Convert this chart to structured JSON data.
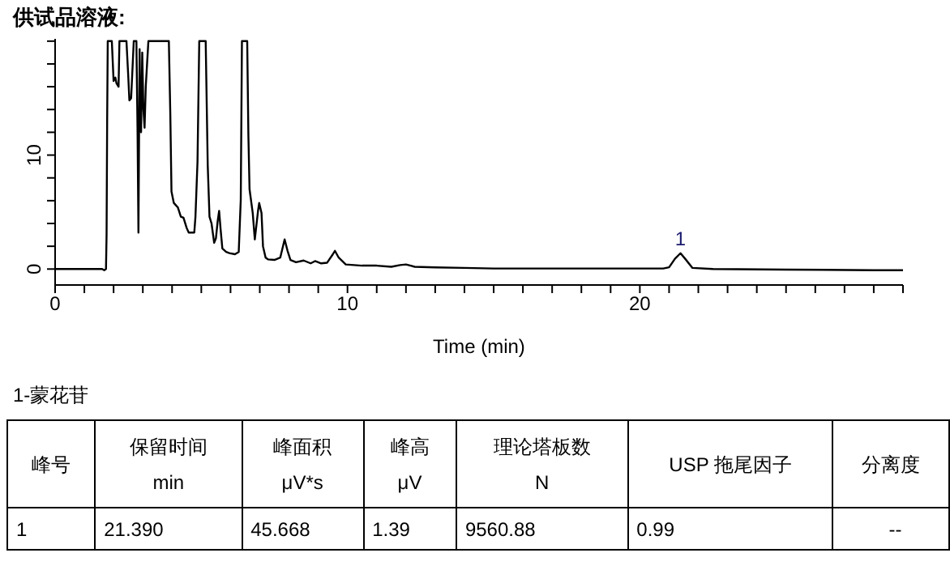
{
  "chart_data": {
    "type": "line",
    "title": "供试品溶液:",
    "xlabel": "Time (min)",
    "color": "#000000",
    "marker": "none",
    "x": [
      0,
      1.61,
      1.68,
      1.74,
      1.76,
      1.78,
      1.8,
      1.94,
      2.0,
      2.06,
      2.1,
      2.17,
      2.2,
      2.44,
      2.5,
      2.54,
      2.6,
      2.69,
      2.78,
      2.82,
      2.85,
      2.89,
      2.92,
      2.94,
      2.98,
      3.02,
      3.06,
      3.1,
      3.19,
      3.89,
      3.94,
      3.98,
      4.06,
      4.2,
      4.3,
      4.39,
      4.5,
      4.57,
      4.76,
      4.8,
      4.87,
      4.93,
      5.15,
      5.22,
      5.28,
      5.35,
      5.44,
      5.5,
      5.56,
      5.61,
      5.66,
      5.72,
      5.85,
      5.96,
      6.15,
      6.28,
      6.35,
      6.39,
      6.57,
      6.61,
      6.65,
      6.76,
      6.83,
      6.94,
      6.98,
      7.06,
      7.11,
      7.2,
      7.28,
      7.5,
      7.7,
      7.85,
      7.95,
      8.05,
      8.24,
      8.5,
      8.74,
      8.89,
      9.1,
      9.3,
      9.5,
      9.57,
      9.7,
      9.94,
      10.5,
      11,
      11.5,
      11.8,
      12,
      12.3,
      13,
      14,
      15,
      17,
      19,
      20.8,
      21.0,
      21.2,
      21.39,
      21.55,
      21.8,
      22.5,
      25,
      28,
      29
    ],
    "values": [
      0,
      0,
      -0.1,
      0,
      3,
      13,
      20,
      20,
      16.5,
      16.8,
      16.3,
      16,
      20,
      20,
      17,
      14.8,
      15,
      20,
      20,
      12,
      3.2,
      19.3,
      13,
      12,
      19,
      14,
      12.4,
      16,
      20,
      20,
      13.6,
      6.8,
      5.8,
      5.4,
      4.6,
      4.5,
      3.6,
      3.2,
      3.2,
      4.6,
      9.4,
      20,
      20,
      9.1,
      4.6,
      4,
      2.3,
      2.7,
      4.2,
      5.1,
      3.5,
      1.8,
      1.5,
      1.4,
      1.3,
      1.5,
      6.1,
      20,
      20,
      11.8,
      7,
      4.9,
      2.6,
      5.1,
      5.8,
      4.9,
      2,
      1,
      0.85,
      0.8,
      1,
      2.6,
      1.6,
      0.8,
      0.6,
      0.75,
      0.5,
      0.7,
      0.5,
      0.55,
      1.3,
      1.6,
      1,
      0.4,
      0.3,
      0.3,
      0.2,
      0.35,
      0.4,
      0.2,
      0.15,
      0.1,
      0.05,
      0.05,
      0.05,
      0.05,
      0.15,
      0.9,
      1.39,
      0.9,
      0.1,
      0,
      -0.05,
      -0.1,
      -0.1
    ],
    "xlim": [
      0,
      29
    ],
    "ylim": [
      -1.4,
      20.2
    ],
    "xticks": [
      0,
      {
        "value": 1,
        "label": null
      },
      {
        "value": 2,
        "label": null
      },
      {
        "value": 3,
        "label": null
      },
      {
        "value": 4,
        "label": null
      },
      {
        "value": 5,
        "label": null
      },
      {
        "value": 6,
        "label": null
      },
      {
        "value": 7,
        "label": null
      },
      {
        "value": 8,
        "label": null
      },
      {
        "value": 9,
        "label": null
      },
      10,
      {
        "value": 11,
        "label": null
      },
      {
        "value": 12,
        "label": null
      },
      {
        "value": 13,
        "label": null
      },
      {
        "value": 14,
        "label": null
      },
      {
        "value": 15,
        "label": null
      },
      {
        "value": 16,
        "label": null
      },
      {
        "value": 17,
        "label": null
      },
      {
        "value": 18,
        "label": null
      },
      {
        "value": 19,
        "label": null
      },
      20,
      {
        "value": 21,
        "label": null
      },
      {
        "value": 22,
        "label": null
      },
      {
        "value": 23,
        "label": null
      },
      {
        "value": 24,
        "label": null
      },
      {
        "value": 25,
        "label": null
      },
      {
        "value": 26,
        "label": null
      },
      {
        "value": 27,
        "label": null
      },
      {
        "value": 28,
        "label": null
      },
      {
        "value": 29,
        "label": null
      }
    ],
    "yticks": [
      0,
      {
        "value": 2,
        "label": null
      },
      {
        "value": 4,
        "label": null
      },
      {
        "value": 6,
        "label": null
      },
      {
        "value": 8,
        "label": null
      },
      10,
      {
        "value": 12,
        "label": null
      },
      {
        "value": 14,
        "label": null
      },
      {
        "value": 16,
        "label": null
      },
      {
        "value": 18,
        "label": null
      },
      {
        "value": 20,
        "label": null
      }
    ],
    "annotations": [
      {
        "text": "1",
        "x": 21.39,
        "y": 1.39
      },
      "1-蒙花苷",
      "峰号",
      "保留时间\nmin",
      "峰面积\nμV*s",
      "峰高\nμV",
      "理论塔板数\nN",
      "USP 拖尾因子",
      "分离度",
      "1",
      "21.390",
      "45.668",
      "1.39",
      "9560.88",
      "0.99",
      "--"
    ]
  }
}
